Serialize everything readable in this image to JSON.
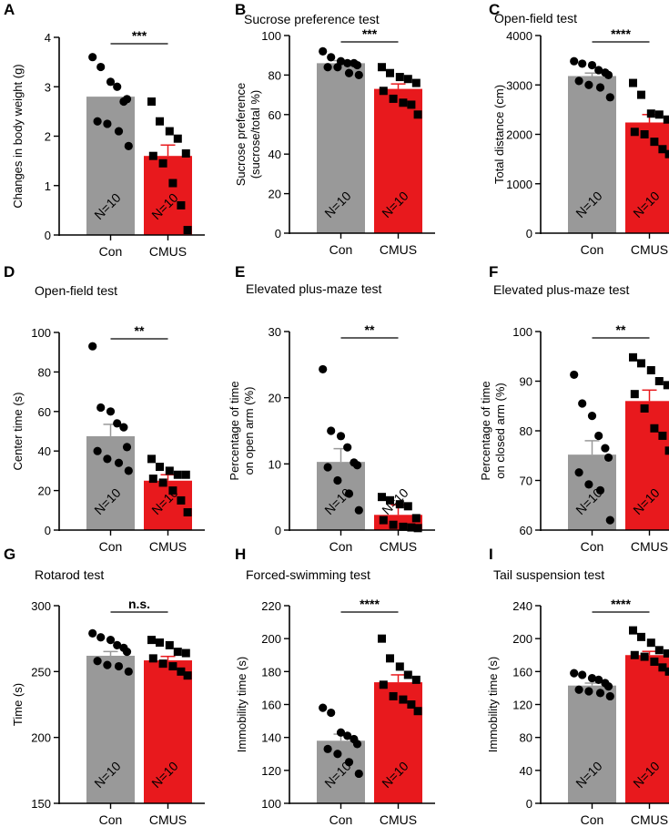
{
  "colors": {
    "con": "#999999",
    "cmus": "#e8191d",
    "axis": "#000000"
  },
  "chart_data": [
    {
      "panel": "A",
      "type": "bar",
      "title": "",
      "ylabel": "Changes in body weight (g)",
      "ylim": [
        0,
        4
      ],
      "yticks": [
        "0",
        "1",
        "2",
        "3",
        "4"
      ],
      "categories": [
        "Con",
        "CMUS"
      ],
      "values": [
        2.8,
        1.6
      ],
      "sem": [
        0,
        0.22
      ],
      "sig": "***",
      "n_labels": [
        "N=10",
        "N=10"
      ],
      "points": [
        [
          3.6,
          3.4,
          3.1,
          3.0,
          2.7,
          2.75,
          2.3,
          2.25,
          2.1,
          1.8
        ],
        [
          2.7,
          2.3,
          2.1,
          1.95,
          1.65,
          1.6,
          1.45,
          1.05,
          0.6,
          0.1
        ]
      ]
    },
    {
      "panel": "B",
      "type": "bar",
      "title": "Sucrose preference test",
      "ylabel": "Sucrose preference (sucrose/total %)",
      "ylim": [
        0,
        100
      ],
      "yticks": [
        "0",
        "20",
        "40",
        "60",
        "80",
        "100"
      ],
      "categories": [
        "Con",
        "CMUS"
      ],
      "values": [
        86,
        73
      ],
      "sem": [
        1.3,
        2.5
      ],
      "sig": "***",
      "n_labels": [
        "N=10",
        "N=10"
      ],
      "points": [
        [
          92,
          89,
          87,
          86,
          86,
          85,
          84,
          84,
          81,
          80
        ],
        [
          84,
          81,
          79,
          78,
          76,
          72,
          68,
          66,
          65,
          60
        ]
      ]
    },
    {
      "panel": "C",
      "type": "bar",
      "title": "Open-field test",
      "ylabel": "Total distance (cm)",
      "ylim": [
        0,
        4000
      ],
      "yticks": [
        "0",
        "1000",
        "2000",
        "3000",
        "4000"
      ],
      "categories": [
        "Con",
        "CMUS"
      ],
      "values": [
        3180,
        2240
      ],
      "sem": [
        60,
        160
      ],
      "sig": "****",
      "n_labels": [
        "N=10",
        "N=10"
      ],
      "points": [
        [
          3480,
          3430,
          3400,
          3300,
          3250,
          3200,
          3080,
          3000,
          2950,
          2750
        ],
        [
          3040,
          2800,
          2420,
          2400,
          2300,
          2050,
          2000,
          1850,
          1700,
          1600
        ]
      ]
    },
    {
      "panel": "D",
      "type": "bar",
      "title": "Open-field test",
      "ylabel": "Center time (s)",
      "ylim": [
        0,
        100
      ],
      "yticks": [
        "0",
        "20",
        "40",
        "60",
        "80",
        "100"
      ],
      "categories": [
        "Con",
        "CMUS"
      ],
      "values": [
        47.5,
        25
      ],
      "sem": [
        6,
        3
      ],
      "sig": "**",
      "n_labels": [
        "N=10",
        "N=10"
      ],
      "points": [
        [
          93,
          62,
          60,
          54,
          52,
          42,
          40,
          36,
          34,
          30
        ],
        [
          36,
          32,
          30,
          28,
          28,
          26,
          24,
          20,
          15,
          9
        ]
      ]
    },
    {
      "panel": "E",
      "type": "bar",
      "title": "Elevated plus-maze test",
      "ylabel": "Percentage of time on open arm (%)",
      "ylim": [
        0,
        30
      ],
      "yticks": [
        "0",
        "10",
        "20",
        "30"
      ],
      "categories": [
        "Con",
        "CMUS"
      ],
      "values": [
        10.3,
        2.3
      ],
      "sem": [
        2,
        1.5
      ],
      "sig": "**",
      "n_labels": [
        "N=10",
        "N=10"
      ],
      "points": [
        [
          24.3,
          15,
          14.2,
          12.5,
          10.2,
          9.8,
          9.5,
          7.5,
          5.5,
          3
        ],
        [
          5,
          4.5,
          3.9,
          3.6,
          1.8,
          1.5,
          0.8,
          0.5,
          0.4,
          0.3
        ]
      ]
    },
    {
      "panel": "F",
      "type": "bar",
      "title": "Elevated plus-maze test",
      "ylabel": "Percentage of time on closed arm (%)",
      "ylim": [
        60,
        100
      ],
      "yticks": [
        "60",
        "70",
        "80",
        "90",
        "100"
      ],
      "categories": [
        "Con",
        "CMUS"
      ],
      "values": [
        75.2,
        86
      ],
      "sem": [
        2.8,
        2.2
      ],
      "sig": "**",
      "n_labels": [
        "N=10",
        "N=10"
      ],
      "points": [
        [
          91.3,
          85.5,
          83,
          79,
          76.5,
          74.6,
          71.6,
          69.2,
          68,
          62
        ],
        [
          94.8,
          93.6,
          92.2,
          90,
          89.2,
          87.4,
          84.5,
          80.5,
          79,
          76
        ]
      ]
    },
    {
      "panel": "G",
      "type": "bar",
      "title": "Rotarod test",
      "ylabel": "Time (s)",
      "ylim": [
        150,
        300
      ],
      "yticks": [
        "150",
        "200",
        "250",
        "300"
      ],
      "categories": [
        "Con",
        "CMUS"
      ],
      "values": [
        262,
        258.5
      ],
      "sem": [
        3.2,
        3
      ],
      "sig": "n.s.",
      "n_labels": [
        "N=10",
        "N=10"
      ],
      "points": [
        [
          279,
          276,
          274,
          270,
          268,
          265,
          258,
          255,
          254,
          250
        ],
        [
          274,
          272,
          270,
          265,
          264,
          260,
          256,
          254,
          250,
          247
        ]
      ]
    },
    {
      "panel": "H",
      "type": "bar",
      "title": "Forced-swimming test",
      "ylabel": "Immobility time (s)",
      "ylim": [
        100,
        220
      ],
      "yticks": [
        "100",
        "120",
        "140",
        "160",
        "180",
        "200",
        "220"
      ],
      "categories": [
        "Con",
        "CMUS"
      ],
      "values": [
        138,
        173.5
      ],
      "sem": [
        4,
        4.5
      ],
      "sig": "****",
      "n_labels": [
        "N=10",
        "N=10"
      ],
      "points": [
        [
          158,
          155,
          143,
          141,
          139,
          136,
          133,
          130,
          125,
          118
        ],
        [
          200,
          188,
          183,
          178,
          175,
          172,
          165,
          163,
          160,
          156
        ]
      ]
    },
    {
      "panel": "I",
      "type": "bar",
      "title": "Tail suspension test",
      "ylabel": "Immobility time (s)",
      "ylim": [
        0,
        240
      ],
      "yticks": [
        "0",
        "40",
        "80",
        "120",
        "160",
        "200",
        "240"
      ],
      "categories": [
        "Con",
        "CMUS"
      ],
      "values": [
        143,
        180
      ],
      "sem": [
        3,
        4.5
      ],
      "sig": "****",
      "n_labels": [
        "N=10",
        "N=10"
      ],
      "points": [
        [
          158,
          156,
          152,
          150,
          146,
          142,
          138,
          136,
          134,
          130
        ],
        [
          210,
          202,
          195,
          186,
          182,
          180,
          178,
          172,
          165,
          160
        ]
      ]
    }
  ]
}
